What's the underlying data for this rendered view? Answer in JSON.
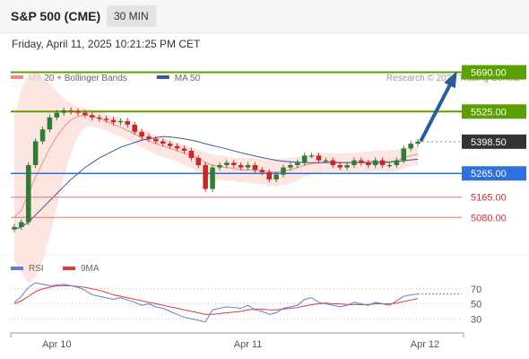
{
  "header": {
    "symbol": "S&P 500 (CME)",
    "timeframe": "30 MIN",
    "timestamp": "Friday, April 11, 2025 10:21:25 PM CET"
  },
  "credit": "Research © 2025 Trading Central",
  "colors": {
    "bull": "#2e7d32",
    "bear": "#c62828",
    "ma20": "#f28b82",
    "band": "#fde0dd",
    "ma50": "#3c5a99",
    "resistance": "#5aa000",
    "support": "#2f6fe0",
    "target_line": "#e57373",
    "arrow": "#2a5d9e",
    "current_price_bg": "#333333",
    "rsi": "#5b7fd6",
    "rsi_ma": "#e53935"
  },
  "chart_data": [
    {
      "type": "candlestick",
      "name": "price",
      "ylim": [
        4900,
        5760
      ],
      "legend": [
        {
          "label": "MA 20 + Bollinger Bands",
          "color": "#f28b82"
        },
        {
          "label": "MA 50",
          "color": "#3c5a99"
        }
      ],
      "x_ticks": [
        {
          "label": "Apr 10",
          "index": 6
        },
        {
          "label": "Apr 11",
          "index": 33
        },
        {
          "label": "Apr 12",
          "index": 58
        }
      ],
      "bars": 58,
      "closes": [
        5040,
        5060,
        5300,
        5400,
        5450,
        5500,
        5520,
        5530,
        5525,
        5520,
        5510,
        5500,
        5495,
        5490,
        5480,
        5485,
        5470,
        5440,
        5420,
        5410,
        5400,
        5390,
        5380,
        5370,
        5360,
        5330,
        5300,
        5200,
        5290,
        5300,
        5310,
        5300,
        5290,
        5300,
        5280,
        5270,
        5240,
        5260,
        5290,
        5300,
        5310,
        5340,
        5340,
        5320,
        5320,
        5300,
        5290,
        5300,
        5320,
        5310,
        5300,
        5320,
        5300,
        5300,
        5320,
        5370,
        5390,
        5398.5
      ],
      "ma20": [
        5080,
        5110,
        5180,
        5250,
        5310,
        5370,
        5420,
        5460,
        5490,
        5505,
        5510,
        5505,
        5495,
        5485,
        5470,
        5460,
        5445,
        5430,
        5415,
        5400,
        5390,
        5380,
        5370,
        5360,
        5350,
        5340,
        5330,
        5310,
        5300,
        5295,
        5290,
        5285,
        5280,
        5280,
        5278,
        5275,
        5272,
        5270,
        5275,
        5280,
        5290,
        5300,
        5305,
        5310,
        5315,
        5315,
        5312,
        5310,
        5310,
        5312,
        5315,
        5318,
        5315,
        5315,
        5318,
        5330,
        5340,
        5345
      ],
      "upper_band": [
        5500,
        5620,
        5680,
        5690,
        5670,
        5640,
        5610,
        5580,
        5560,
        5545,
        5540,
        5535,
        5525,
        5515,
        5505,
        5495,
        5480,
        5465,
        5450,
        5440,
        5425,
        5415,
        5405,
        5395,
        5385,
        5375,
        5365,
        5355,
        5345,
        5340,
        5335,
        5330,
        5330,
        5330,
        5330,
        5328,
        5325,
        5325,
        5328,
        5330,
        5335,
        5340,
        5345,
        5350,
        5352,
        5352,
        5350,
        5350,
        5352,
        5355,
        5358,
        5360,
        5360,
        5362,
        5365,
        5372,
        5378,
        5380
      ],
      "lower_band": [
        4900,
        4850,
        4800,
        4830,
        4900,
        5000,
        5120,
        5250,
        5350,
        5420,
        5460,
        5460,
        5455,
        5445,
        5430,
        5420,
        5405,
        5390,
        5375,
        5360,
        5345,
        5335,
        5325,
        5315,
        5300,
        5285,
        5270,
        5245,
        5240,
        5238,
        5235,
        5232,
        5228,
        5225,
        5222,
        5220,
        5215,
        5212,
        5215,
        5220,
        5235,
        5250,
        5260,
        5265,
        5270,
        5270,
        5270,
        5268,
        5268,
        5268,
        5270,
        5272,
        5272,
        5272,
        5275,
        5285,
        5295,
        5300
      ],
      "ma50": [
        5030,
        5040,
        5060,
        5090,
        5120,
        5150,
        5180,
        5210,
        5240,
        5265,
        5290,
        5310,
        5330,
        5345,
        5360,
        5375,
        5385,
        5395,
        5405,
        5410,
        5415,
        5420,
        5418,
        5415,
        5410,
        5405,
        5398,
        5390,
        5382,
        5375,
        5368,
        5360,
        5352,
        5345,
        5338,
        5332,
        5326,
        5320,
        5316,
        5314,
        5312,
        5310,
        5310,
        5310,
        5310,
        5310,
        5310,
        5310,
        5310,
        5310,
        5310,
        5310,
        5310,
        5312,
        5315,
        5318,
        5322,
        5325
      ],
      "levels": [
        {
          "value": 5690.0,
          "label": "5690.00",
          "kind": "resistance"
        },
        {
          "value": 5525.0,
          "label": "5525.00",
          "kind": "resistance"
        },
        {
          "value": 5398.5,
          "label": "5398.50",
          "kind": "current"
        },
        {
          "value": 5265.0,
          "label": "5265.00",
          "kind": "support"
        },
        {
          "value": 5165.0,
          "label": "5165.00",
          "kind": "target"
        },
        {
          "value": 5080.0,
          "label": "5080.00",
          "kind": "target"
        }
      ],
      "arrow": {
        "from_index": 57,
        "from_value": 5398.5,
        "to_value": 5690.0,
        "direction": "up"
      }
    },
    {
      "type": "line",
      "name": "rsi",
      "ylim": [
        10,
        90
      ],
      "y_ticks": [
        30,
        50,
        70
      ],
      "legend": [
        {
          "label": "RSI",
          "color": "#5b7fd6"
        },
        {
          "label": "9MA",
          "color": "#e53935"
        }
      ],
      "series": [
        {
          "name": "RSI",
          "values": [
            52,
            60,
            72,
            78,
            76,
            74,
            75,
            76,
            74,
            72,
            68,
            62,
            60,
            58,
            56,
            58,
            55,
            52,
            48,
            50,
            46,
            44,
            40,
            36,
            32,
            30,
            28,
            26,
            42,
            44,
            46,
            45,
            44,
            48,
            42,
            40,
            36,
            38,
            44,
            46,
            48,
            56,
            58,
            52,
            50,
            48,
            46,
            48,
            52,
            50,
            48,
            52,
            50,
            48,
            54,
            60,
            62,
            63
          ]
        },
        {
          "name": "9MA",
          "values": [
            50,
            54,
            60,
            66,
            70,
            72,
            74,
            74,
            74,
            73,
            72,
            70,
            68,
            65,
            62,
            60,
            58,
            56,
            54,
            52,
            50,
            48,
            46,
            44,
            42,
            40,
            38,
            36,
            36,
            37,
            38,
            39,
            40,
            42,
            43,
            43,
            42,
            42,
            43,
            44,
            45,
            47,
            49,
            50,
            51,
            50,
            50,
            49,
            49,
            49,
            49,
            50,
            50,
            50,
            51,
            53,
            55,
            57
          ]
        }
      ]
    }
  ]
}
